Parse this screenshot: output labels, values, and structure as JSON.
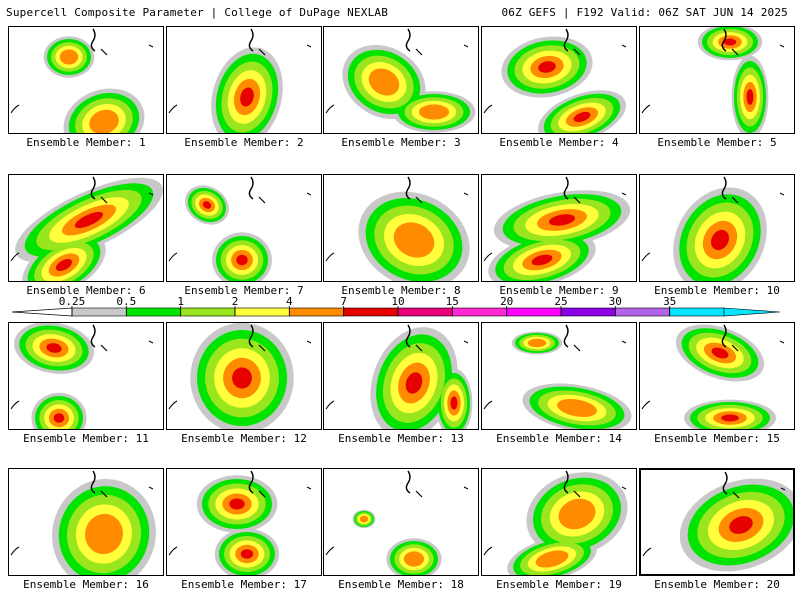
{
  "header": {
    "title_left": "Supercell Composite Parameter | College of DuPage NEXLAB",
    "title_right": "06Z GEFS | F192 Valid: 06Z SAT JUN 14 2025"
  },
  "caption_prefix": "Ensemble Member:",
  "selected_member": 20,
  "members": [
    {
      "id": 1,
      "label": "Ensemble Member: 1"
    },
    {
      "id": 2,
      "label": "Ensemble Member: 2"
    },
    {
      "id": 3,
      "label": "Ensemble Member: 3"
    },
    {
      "id": 4,
      "label": "Ensemble Member: 4"
    },
    {
      "id": 5,
      "label": "Ensemble Member: 5"
    },
    {
      "id": 6,
      "label": "Ensemble Member: 6"
    },
    {
      "id": 7,
      "label": "Ensemble Member: 7"
    },
    {
      "id": 8,
      "label": "Ensemble Member: 8"
    },
    {
      "id": 9,
      "label": "Ensemble Member: 9"
    },
    {
      "id": 10,
      "label": "Ensemble Member: 10"
    },
    {
      "id": 11,
      "label": "Ensemble Member: 11"
    },
    {
      "id": 12,
      "label": "Ensemble Member: 12"
    },
    {
      "id": 13,
      "label": "Ensemble Member: 13"
    },
    {
      "id": 14,
      "label": "Ensemble Member: 14"
    },
    {
      "id": 15,
      "label": "Ensemble Member: 15"
    },
    {
      "id": 16,
      "label": "Ensemble Member: 16"
    },
    {
      "id": 17,
      "label": "Ensemble Member: 17"
    },
    {
      "id": 18,
      "label": "Ensemble Member: 18"
    },
    {
      "id": 19,
      "label": "Ensemble Member: 19"
    },
    {
      "id": 20,
      "label": "Ensemble Member: 20"
    }
  ],
  "colorbar": {
    "ticks": [
      "0.25",
      "0.5",
      "1",
      "2",
      "4",
      "7",
      "10",
      "15",
      "20",
      "25",
      "30",
      "35"
    ],
    "colors": [
      "#c8c8c8",
      "#00e400",
      "#9ae61e",
      "#ffff3c",
      "#ff8c00",
      "#e60000",
      "#e6007d",
      "#ff28d2",
      "#ff00ff",
      "#8c00e6",
      "#b464e6",
      "#00e6ff"
    ],
    "palette": {
      "gray": "#c8c8c8",
      "green": "#00e400",
      "lightgreen": "#9ae61e",
      "yellow": "#ffff3c",
      "orange": "#ff8c00",
      "red": "#e60000"
    }
  }
}
